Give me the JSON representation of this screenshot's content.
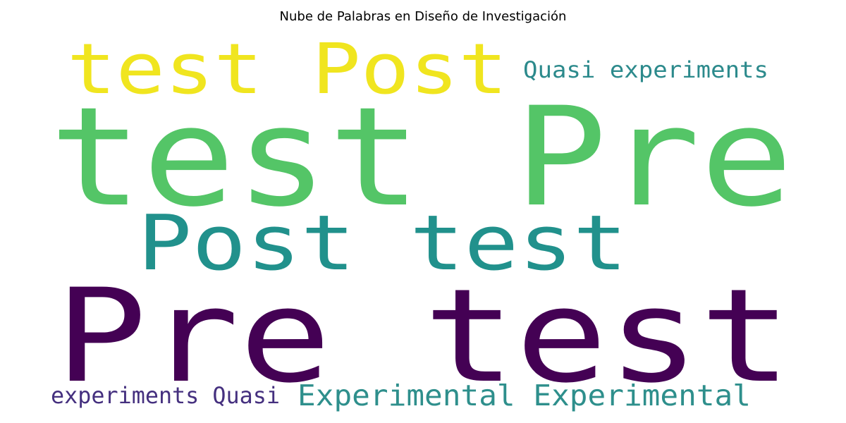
{
  "chart_data": {
    "type": "wordcloud",
    "title": "Nube de Palabras en Diseño de Investigación",
    "words": [
      {
        "text": "Pre test",
        "weight": 1.0,
        "color": "#440154"
      },
      {
        "text": "test Pre",
        "weight": 0.95,
        "color": "#54c567"
      },
      {
        "text": "Post test",
        "weight": 0.62,
        "color": "#21918c"
      },
      {
        "text": "test Post",
        "weight": 0.56,
        "color": "#f0e51f"
      },
      {
        "text": "Quasi experiments",
        "weight": 0.2,
        "color": "#2c8a8c"
      },
      {
        "text": "Experimental Experimental",
        "weight": 0.25,
        "color": "#2e8f8c"
      },
      {
        "text": "experiments Quasi",
        "weight": 0.19,
        "color": "#45307f"
      }
    ]
  }
}
